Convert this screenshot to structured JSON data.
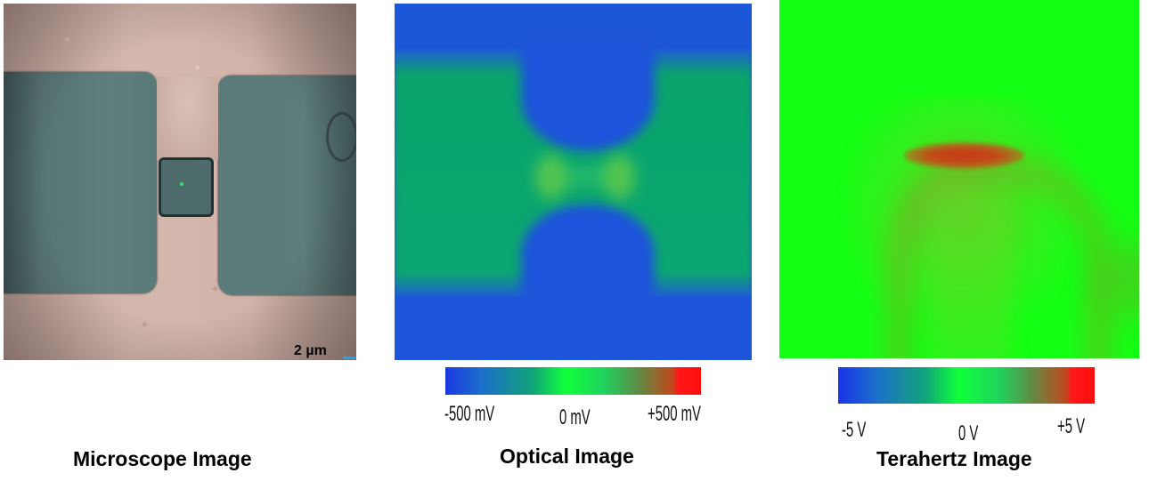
{
  "panels": {
    "microscope": {
      "caption": "Microscope Image",
      "scale_bar_label": "2 µm"
    },
    "optical": {
      "caption": "Optical Image",
      "colorbar": {
        "min_label": "-500 mV",
        "mid_label": "0 mV",
        "max_label": "+500 mV"
      }
    },
    "terahertz": {
      "caption": "Terahertz Image",
      "colorbar": {
        "min_label": "-5 V",
        "mid_label": "0 V",
        "max_label": "+5 V"
      }
    }
  },
  "colors": {
    "colormap_low": "#1a39e0",
    "colormap_mid": "#10ff3a",
    "colormap_high": "#ff1717",
    "substrate": "#ccaea3",
    "electrode": "#5d7d7b",
    "scale_bar": "#1aa6ff"
  }
}
